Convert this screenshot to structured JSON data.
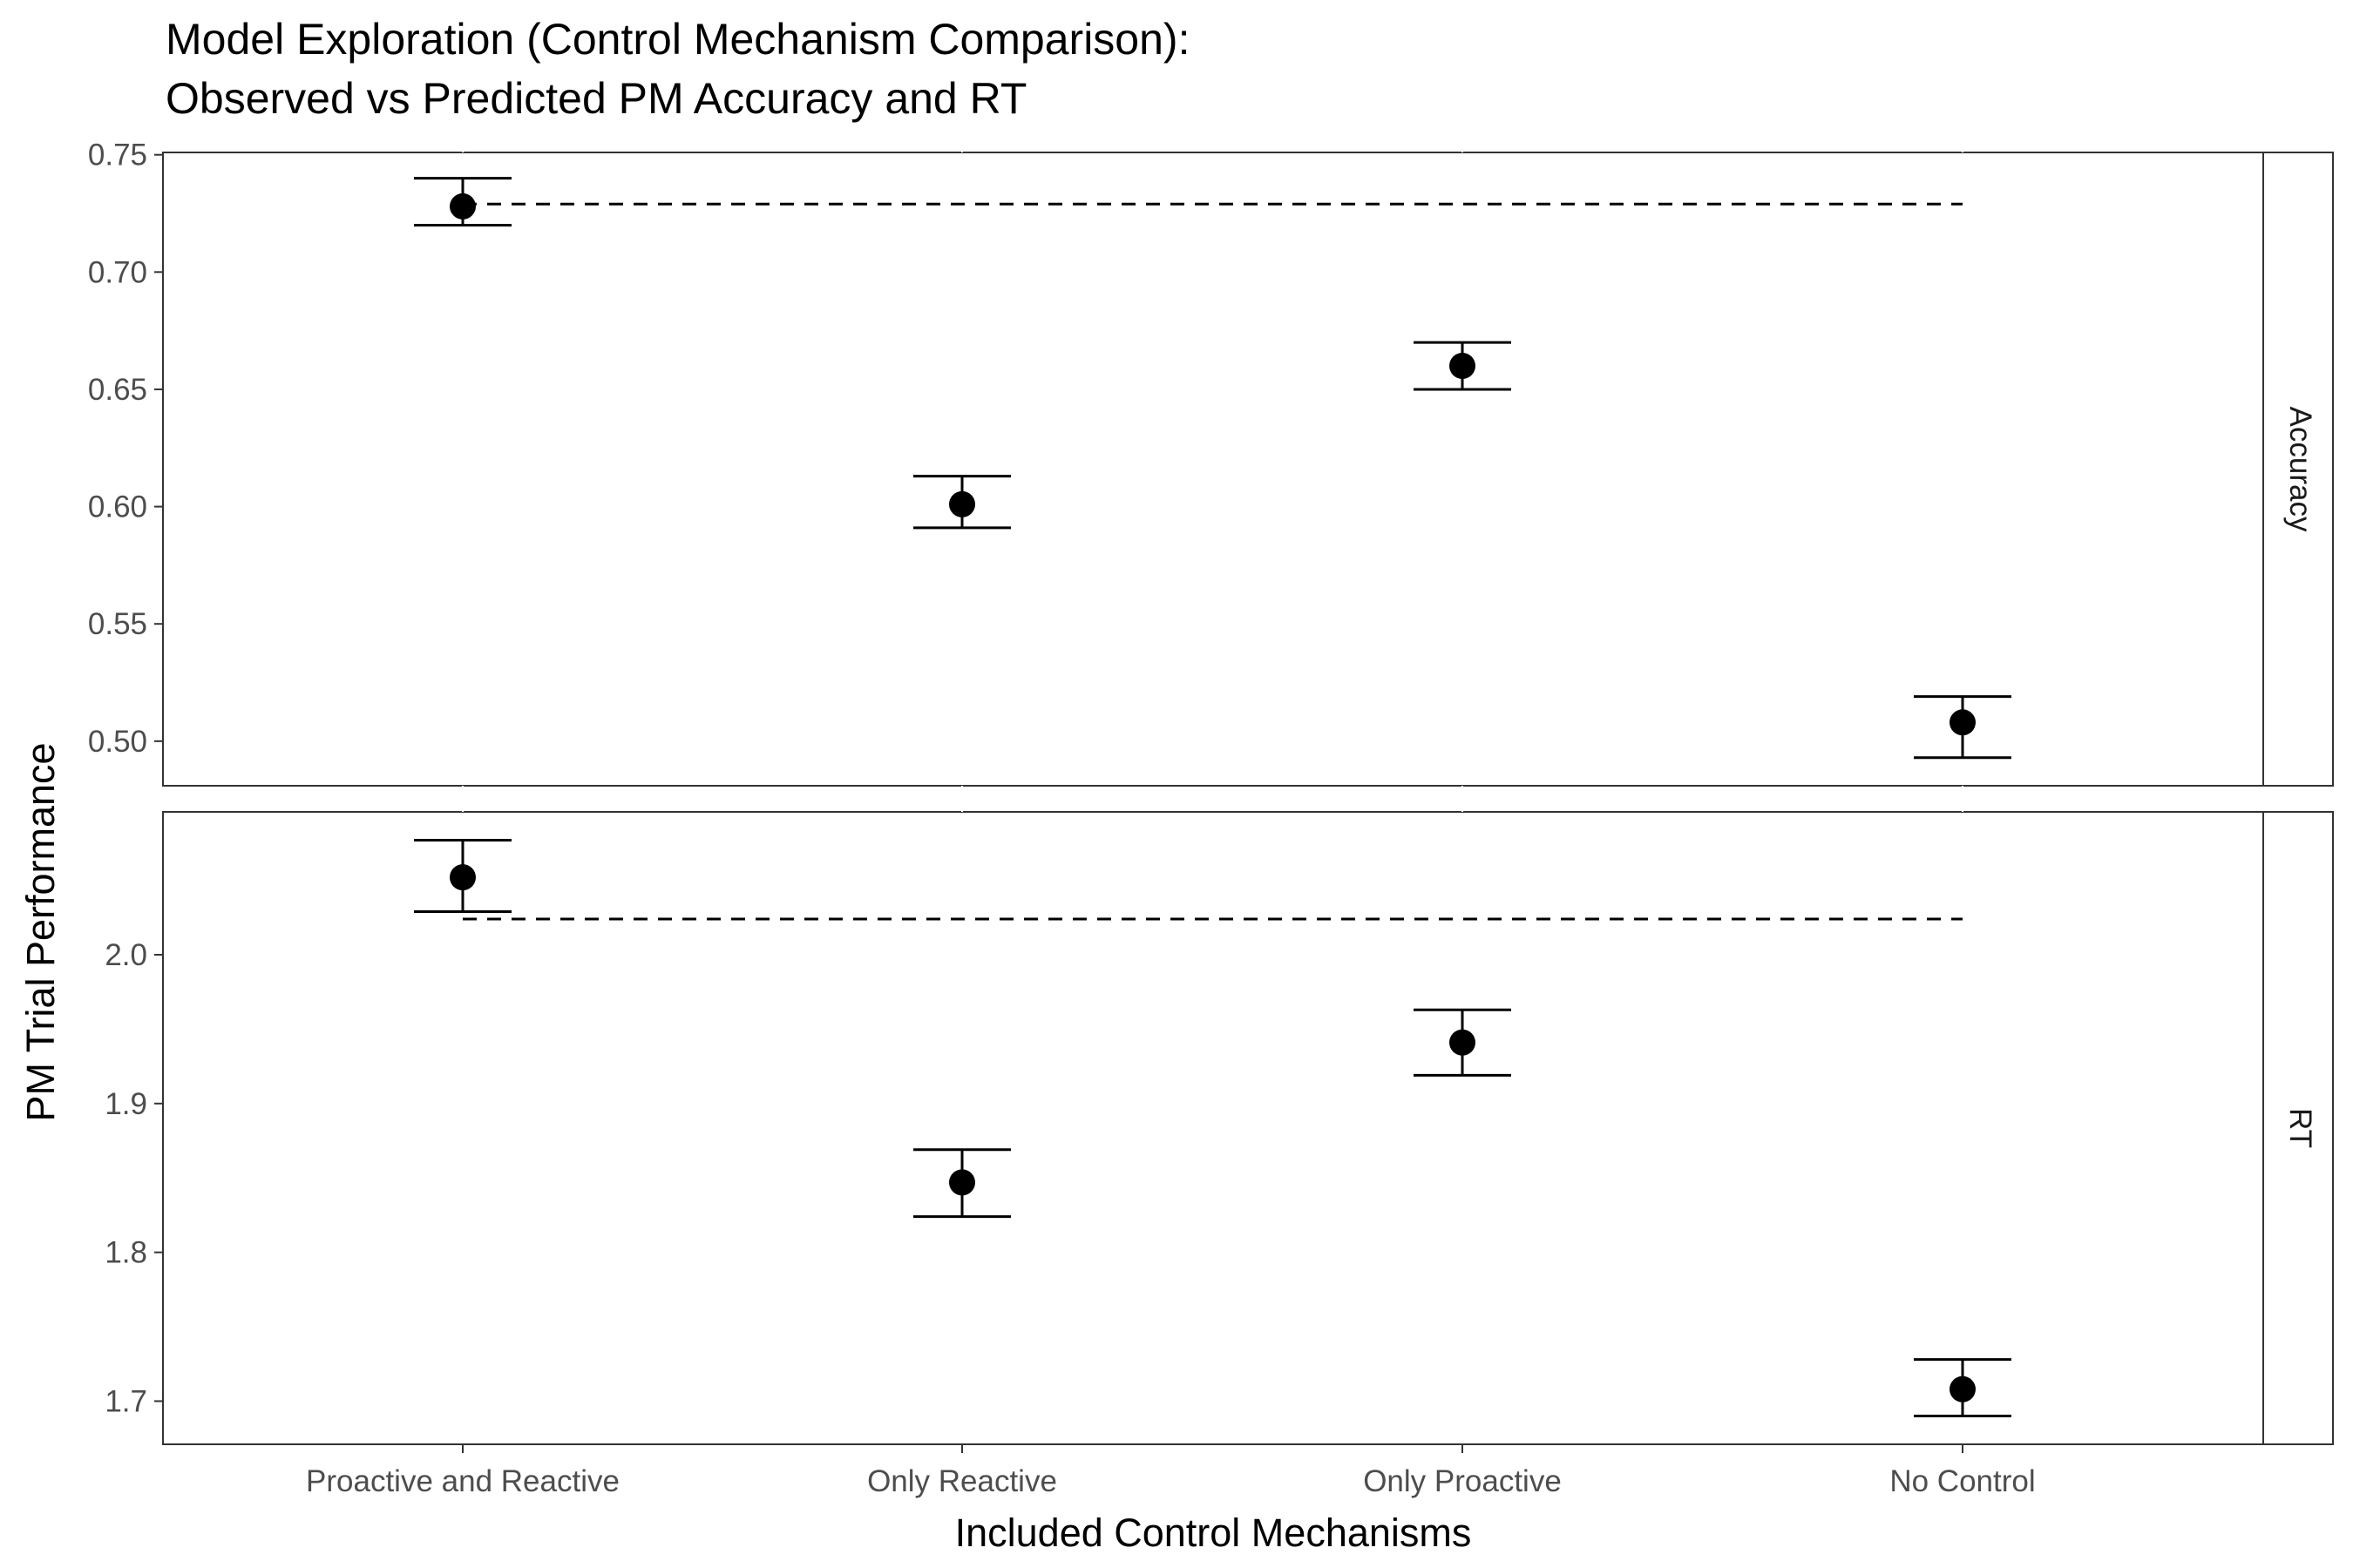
{
  "chart_data": {
    "type": "scatter",
    "title_lines": [
      "Model Exploration (Control Mechanism Comparison):",
      "Observed vs Predicted PM Accuracy and RT"
    ],
    "xlabel": "Included Control Mechanisms",
    "ylabel": "PM Trial Performance",
    "categories": [
      "Proactive and Reactive",
      "Only Reactive",
      "Only Proactive",
      "No Control"
    ],
    "facets": [
      {
        "label": "Accuracy",
        "ylim": [
          0.481,
          0.751
        ],
        "yticks": [
          0.5,
          0.55,
          0.6,
          0.65,
          0.7,
          0.75
        ],
        "ytick_labels": [
          "0.50",
          "0.55",
          "0.60",
          "0.65",
          "0.70",
          "0.75"
        ],
        "points": [
          {
            "category": "Proactive and Reactive",
            "value": 0.728,
            "lower": 0.72,
            "upper": 0.74
          },
          {
            "category": "Only Reactive",
            "value": 0.601,
            "lower": 0.591,
            "upper": 0.613
          },
          {
            "category": "Only Proactive",
            "value": 0.66,
            "lower": 0.65,
            "upper": 0.67
          },
          {
            "category": "No Control",
            "value": 0.508,
            "lower": 0.493,
            "upper": 0.519
          }
        ],
        "observed_line": {
          "value": 0.729,
          "from": "Proactive and Reactive",
          "to": "No Control",
          "style": "dashed"
        }
      },
      {
        "label": "RT",
        "ylim": [
          1.671,
          2.096
        ],
        "yticks": [
          1.7,
          1.8,
          1.9,
          2.0
        ],
        "ytick_labels": [
          "1.7",
          "1.8",
          "1.9",
          "2.0"
        ],
        "points": [
          {
            "category": "Proactive and Reactive",
            "value": 2.052,
            "lower": 2.029,
            "upper": 2.077
          },
          {
            "category": "Only Reactive",
            "value": 1.847,
            "lower": 1.824,
            "upper": 1.869
          },
          {
            "category": "Only Proactive",
            "value": 1.941,
            "lower": 1.919,
            "upper": 1.963
          },
          {
            "category": "No Control",
            "value": 1.708,
            "lower": 1.69,
            "upper": 1.728
          }
        ],
        "observed_line": {
          "value": 2.024,
          "from": "Proactive and Reactive",
          "to": "No Control",
          "style": "dashed"
        }
      }
    ],
    "grid": false,
    "strip_position": "right",
    "point_color": "#000000"
  }
}
